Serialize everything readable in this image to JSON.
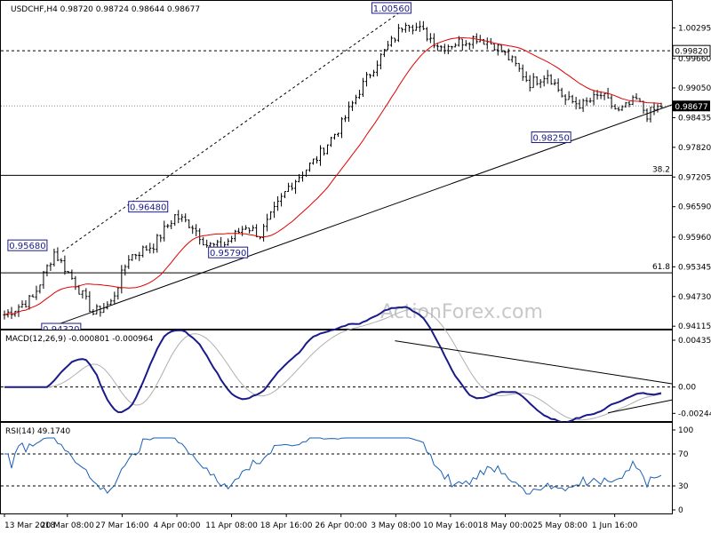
{
  "chart_data": [
    {
      "type": "candlestick",
      "title": "USDCHF,H4  0.98720 0.98724 0.98644 0.98677",
      "watermark": "ActionForex.com",
      "ylim": [
        0.941,
        1.0078
      ],
      "price_ticks": [
        "1.00295",
        "0.99660",
        "0.99050",
        "0.98435",
        "0.97820",
        "0.97205",
        "0.96590",
        "0.95960",
        "0.95345",
        "0.94730",
        "0.94115"
      ],
      "x_tick_labels": [
        "13 Mar 2018",
        "20 Mar 08:00",
        "27 Mar 16:00",
        "4 Apr 00:00",
        "11 Apr 08:00",
        "18 Apr 16:00",
        "26 Apr 00:00",
        "3 May 08:00",
        "10 May 16:00",
        "18 May 00:00",
        "25 May 08:00",
        "1 Jun 16:00"
      ],
      "current_price": "0.98677",
      "level_line_label": "0.99820",
      "level_lines": [
        {
          "price": 0.9982,
          "style": "dashed",
          "label": ""
        },
        {
          "price": 0.9724,
          "style": "solid",
          "label": "38.2"
        },
        {
          "price": 0.9522,
          "style": "solid",
          "label": "61.8"
        }
      ],
      "annotations": [
        {
          "text": "1.00560",
          "x_index": 111,
          "price": 1.0056
        },
        {
          "text": "0.95680",
          "x_index": 14,
          "price": 0.9568
        },
        {
          "text": "0.94320",
          "x_index": 25,
          "price": 0.9432
        },
        {
          "text": "0.96480",
          "x_index": 48,
          "price": 0.9648
        },
        {
          "text": "0.95790",
          "x_index": 61,
          "price": 0.9579
        },
        {
          "text": "0.98250",
          "x_index": 158,
          "price": 0.9825
        }
      ],
      "series": [
        {
          "name": "price",
          "color": "#000000"
        },
        {
          "name": "moving average",
          "color": "#e00000"
        }
      ],
      "bar_count": 186,
      "last_x_index": 185
    },
    {
      "type": "line",
      "title": "MACD(12,26,9) -0.000801 -0.000964",
      "ylim": [
        -0.003,
        0.0046
      ],
      "y_ticks": [
        "0.004351",
        "0.00",
        "-0.002448"
      ],
      "series": [
        {
          "name": "MACD",
          "color": "#1a1a8a"
        },
        {
          "name": "signal",
          "color": "#b0b0b0"
        }
      ]
    },
    {
      "type": "line",
      "title": "RSI(14) 49.1740",
      "ylim": [
        0,
        100
      ],
      "y_ticks": [
        "100",
        "70",
        "30",
        "0"
      ],
      "levels": [
        70,
        30
      ],
      "series": [
        {
          "name": "RSI",
          "color": "#1a5fb4"
        }
      ]
    }
  ]
}
